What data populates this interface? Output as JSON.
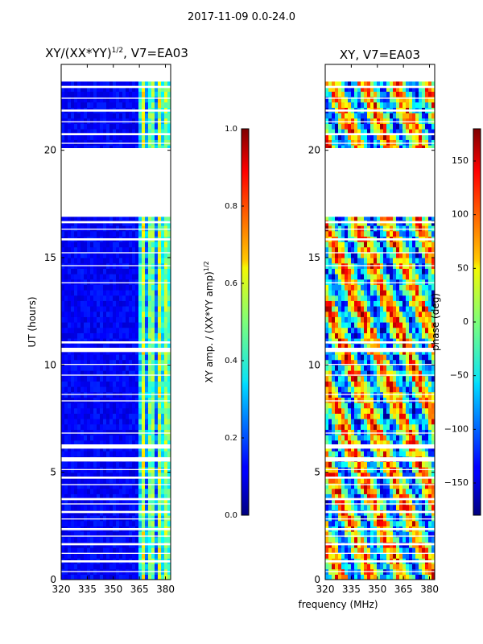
{
  "figure": {
    "suptitle": "2017-11-09 0.0-24.0",
    "xlabel": "frequency (MHz)"
  },
  "chart_data": [
    {
      "type": "heatmap",
      "title_main": "XY/(XX*YY)",
      "title_sup": "1/2",
      "title_tail": ", V7=EA03",
      "ylabel": "UT (hours)",
      "xlim": [
        320,
        383
      ],
      "ylim": [
        0,
        24
      ],
      "xticks": [
        "320",
        "335",
        "350",
        "365",
        "380"
      ],
      "yticks": [
        "0",
        "5",
        "10",
        "15",
        "20"
      ],
      "gaps_ut": [
        [
          0.35,
          0.4
        ],
        [
          0.8,
          0.9
        ],
        [
          1.2,
          1.25
        ],
        [
          1.6,
          1.7
        ],
        [
          2.0,
          2.05
        ],
        [
          2.3,
          2.4
        ],
        [
          2.8,
          2.85
        ],
        [
          3.1,
          3.2
        ],
        [
          3.5,
          3.55
        ],
        [
          3.7,
          3.8
        ],
        [
          4.4,
          4.45
        ],
        [
          4.7,
          4.8
        ],
        [
          5.1,
          5.15
        ],
        [
          5.5,
          5.7
        ],
        [
          6.1,
          6.3
        ],
        [
          6.8,
          6.85
        ],
        [
          8.3,
          8.35
        ],
        [
          8.6,
          8.65
        ],
        [
          9.5,
          9.55
        ],
        [
          10.0,
          10.05
        ],
        [
          10.6,
          10.8
        ],
        [
          11.0,
          11.1
        ],
        [
          13.8,
          13.85
        ],
        [
          14.6,
          14.65
        ],
        [
          15.2,
          15.25
        ],
        [
          15.8,
          15.9
        ],
        [
          16.3,
          16.35
        ],
        [
          16.6,
          16.7
        ],
        [
          16.9,
          20.1
        ],
        [
          18.8,
          18.85
        ],
        [
          19.1,
          19.2
        ],
        [
          19.5,
          19.8
        ],
        [
          20.3,
          20.35
        ],
        [
          20.7,
          20.8
        ],
        [
          21.3,
          21.35
        ],
        [
          21.8,
          21.9
        ],
        [
          22.4,
          22.45
        ],
        [
          22.9,
          23.0
        ],
        [
          23.2,
          24.0
        ]
      ],
      "colorbar": {
        "label_main": "XY amp. / (XX*YY amp)",
        "label_sup": "1/2",
        "range": [
          0.0,
          1.0
        ],
        "ticks": [
          "0.0",
          "0.2",
          "0.4",
          "0.6",
          "0.8",
          "1.0"
        ],
        "colormap": "jet"
      }
    },
    {
      "type": "heatmap",
      "title_main": "XY, V7=EA03",
      "xlim": [
        320,
        383
      ],
      "ylim": [
        0,
        24
      ],
      "xticks": [
        "320",
        "335",
        "350",
        "365",
        "380"
      ],
      "yticks": [
        "0",
        "5",
        "10",
        "15",
        "20"
      ],
      "gaps_ut": [
        [
          0.35,
          0.4
        ],
        [
          0.8,
          0.9
        ],
        [
          1.2,
          1.25
        ],
        [
          1.6,
          1.7
        ],
        [
          2.0,
          2.05
        ],
        [
          2.3,
          2.4
        ],
        [
          2.8,
          2.85
        ],
        [
          3.1,
          3.2
        ],
        [
          3.5,
          3.55
        ],
        [
          3.7,
          3.8
        ],
        [
          4.4,
          4.45
        ],
        [
          4.7,
          4.8
        ],
        [
          5.1,
          5.15
        ],
        [
          5.5,
          5.7
        ],
        [
          6.1,
          6.3
        ],
        [
          6.8,
          6.85
        ],
        [
          8.3,
          8.35
        ],
        [
          8.6,
          8.65
        ],
        [
          9.5,
          9.55
        ],
        [
          10.0,
          10.05
        ],
        [
          10.6,
          10.8
        ],
        [
          11.0,
          11.1
        ],
        [
          13.8,
          13.85
        ],
        [
          14.6,
          14.65
        ],
        [
          15.2,
          15.25
        ],
        [
          15.8,
          15.9
        ],
        [
          16.3,
          16.35
        ],
        [
          16.6,
          16.7
        ],
        [
          16.9,
          20.1
        ],
        [
          18.8,
          18.85
        ],
        [
          19.1,
          19.2
        ],
        [
          19.5,
          19.8
        ],
        [
          20.3,
          20.35
        ],
        [
          20.7,
          20.8
        ],
        [
          21.3,
          21.35
        ],
        [
          21.8,
          21.9
        ],
        [
          22.4,
          22.45
        ],
        [
          22.9,
          23.0
        ],
        [
          23.2,
          24.0
        ]
      ],
      "colorbar": {
        "label_main": "phase (deg)",
        "range": [
          -180,
          180
        ],
        "ticks": [
          "−150",
          "−100",
          "−50",
          "0",
          "50",
          "100",
          "150"
        ],
        "tick_values": [
          -150,
          -100,
          -50,
          0,
          50,
          100,
          150
        ],
        "colormap": "jet"
      }
    }
  ]
}
